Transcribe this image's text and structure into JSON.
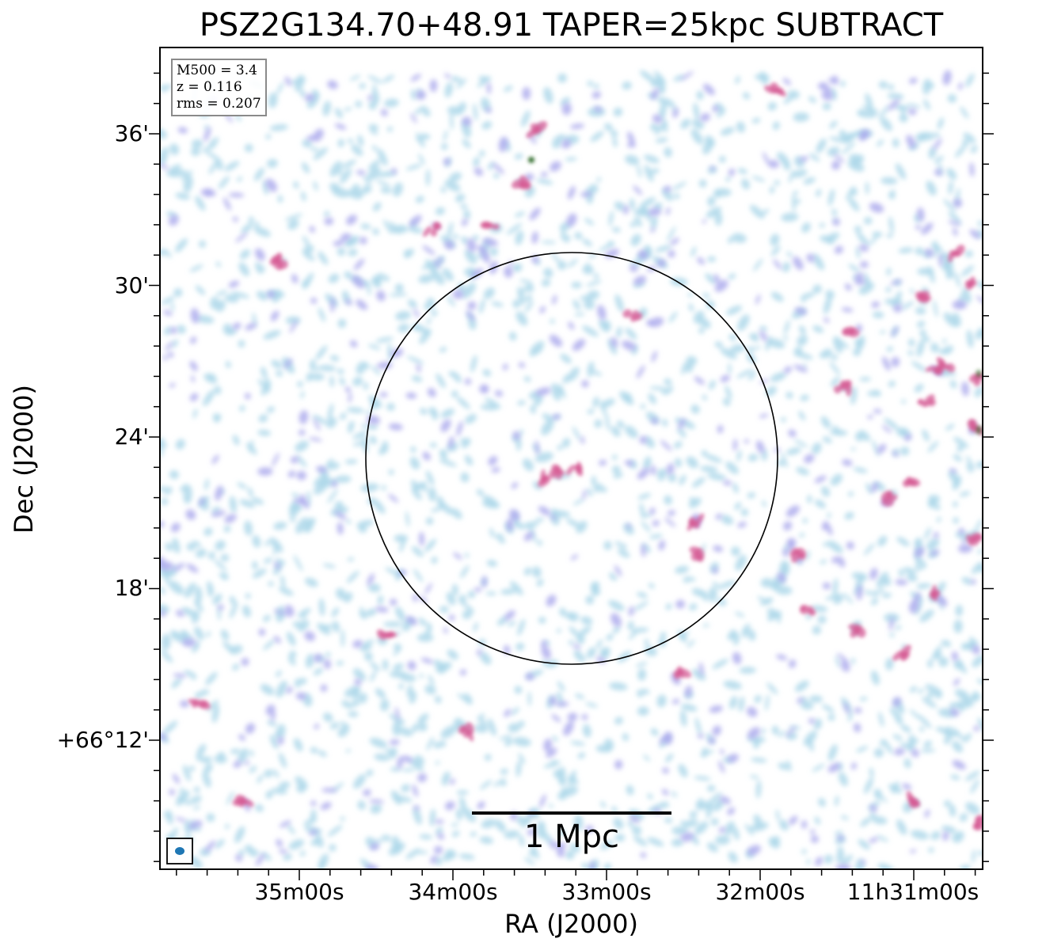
{
  "title": "PSZ2G134.70+48.91 TAPER=25kpc SUBTRACT",
  "axes": {
    "xlabel": "RA (J2000)",
    "ylabel": "Dec (J2000)",
    "xticks": [
      "35m00s",
      "34m00s",
      "33m00s",
      "32m00s",
      "11h31m00s"
    ],
    "yticks": [
      "36'",
      "30'",
      "24'",
      "18'",
      "+66°12'"
    ]
  },
  "info": {
    "mass": "M500 = 3.4",
    "redshift": "z = 0.116",
    "rms": "rms = 0.207"
  },
  "scalebar": {
    "label": "1 Mpc"
  },
  "colors": {
    "faint_emission": "#aed8ea",
    "medium_emission": "#a9a8ec",
    "bright_emission": "#d45a93",
    "peak_emission": "#2e6b2a",
    "beam": "#1f77b4",
    "circle": "#000000"
  },
  "icons": {
    "beam": "filled-ellipse-icon"
  }
}
